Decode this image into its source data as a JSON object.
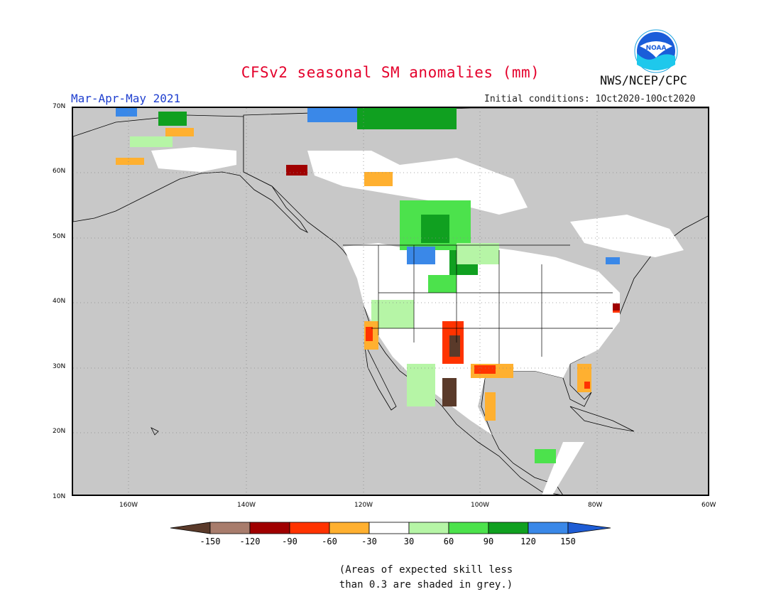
{
  "title": "CFSv2 seasonal SM anomalies (mm)",
  "agency": "NWS/NCEP/CPC",
  "season": "Mar-Apr-May 2021",
  "initial_conditions": "Initial conditions: 1Oct2020-10Oct2020",
  "logo_text": "NOAA",
  "note_line1": "(Areas of expected skill less",
  "note_line2": "than 0.3 are shaded in grey.)",
  "lat_labels": [
    "70N",
    "60N",
    "50N",
    "40N",
    "30N",
    "20N",
    "10N"
  ],
  "lon_labels": [
    "160W",
    "140W",
    "120W",
    "100W",
    "80W",
    "60W"
  ],
  "colorbar": {
    "ticks": [
      "-150",
      "-120",
      "-90",
      "-60",
      "-30",
      "30",
      "60",
      "90",
      "120",
      "150"
    ],
    "colors": [
      "#5a3a2a",
      "#a87c6c",
      "#a00000",
      "#ff3300",
      "#ffb030",
      "#ffffff",
      "#b6f5a6",
      "#4ce24c",
      "#10a020",
      "#3a88e8",
      "#1e5cd4"
    ]
  },
  "colors": {
    "grey_low_skill": "#c8c8c8",
    "ocean_border": "#000000",
    "title_red": "#e4002b",
    "season_blue": "#1f3fcf"
  }
}
